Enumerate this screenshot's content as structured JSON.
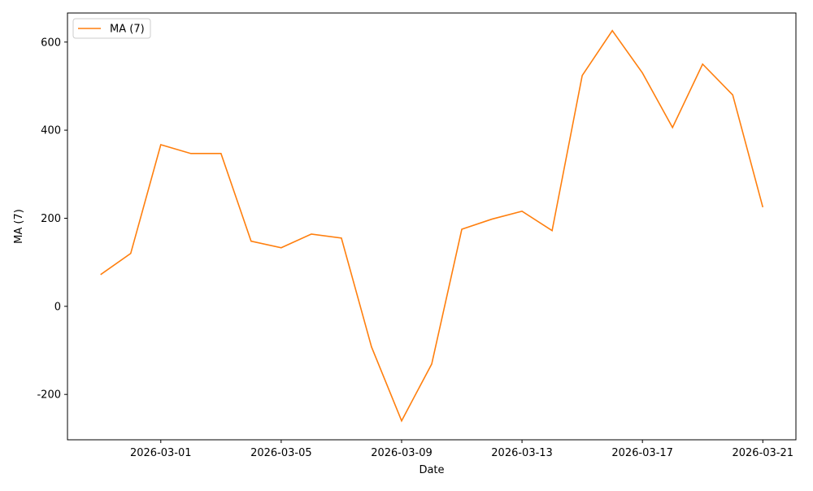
{
  "chart_data": {
    "type": "line",
    "x_label": "Date",
    "y_label": "MA (7)",
    "x": [
      "2026-02-27",
      "2026-02-28",
      "2026-03-01",
      "2026-03-02",
      "2026-03-03",
      "2026-03-04",
      "2026-03-05",
      "2026-03-06",
      "2026-03-07",
      "2026-03-08",
      "2026-03-09",
      "2026-03-10",
      "2026-03-11",
      "2026-03-12",
      "2026-03-13",
      "2026-03-14",
      "2026-03-15",
      "2026-03-16",
      "2026-03-17",
      "2026-03-18",
      "2026-03-19",
      "2026-03-20",
      "2026-03-21"
    ],
    "series": [
      {
        "name": "MA (7)",
        "color": "#ff7f0e",
        "values": [
          72,
          120,
          367,
          347,
          347,
          148,
          133,
          164,
          155,
          -92,
          -260,
          -131,
          175,
          198,
          216,
          172,
          524,
          626,
          530,
          406,
          550,
          480,
          225
        ]
      }
    ],
    "xticks": [
      "2026-03-01",
      "2026-03-05",
      "2026-03-09",
      "2026-03-13",
      "2026-03-17",
      "2026-03-21"
    ],
    "ylim": [
      -303,
      666
    ],
    "yticks": [
      -200,
      0,
      200,
      400,
      600
    ],
    "legend": "upper left",
    "grid": false
  }
}
